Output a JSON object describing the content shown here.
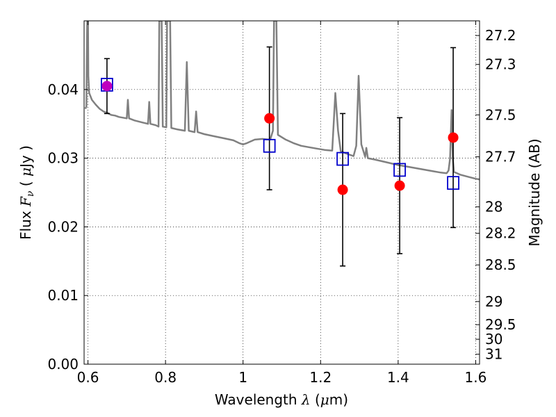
{
  "chart_data": {
    "type": "scatter",
    "xlabel": {
      "prefix": "Wavelength ",
      "symbol": "λ",
      "open": " (",
      "unit_mu": "μ",
      "unit": "m)"
    },
    "ylabel": {
      "prefix": "Flux ",
      "symbol": "F",
      "sub": "ν",
      "open": " ( ",
      "unit_mu": "μ",
      "unit": "Jy )"
    },
    "y2label": "Magnitude (AB)",
    "xlim": [
      0.59,
      1.61
    ],
    "ylim": [
      0.0,
      0.05
    ],
    "x_ticks": [
      {
        "value": 0.6,
        "label": "0.6"
      },
      {
        "value": 0.8,
        "label": "0.8"
      },
      {
        "value": 1.0,
        "label": "1"
      },
      {
        "value": 1.2,
        "label": "1.2"
      },
      {
        "value": 1.4,
        "label": "1.4"
      },
      {
        "value": 1.6,
        "label": "1.6"
      }
    ],
    "y_ticks": [
      {
        "value": 0.0,
        "label": "0.00"
      },
      {
        "value": 0.01,
        "label": "0.01"
      },
      {
        "value": 0.02,
        "label": "0.02"
      },
      {
        "value": 0.03,
        "label": "0.03"
      },
      {
        "value": 0.04,
        "label": "0.04"
      }
    ],
    "y2_ticks": [
      {
        "mag": 27.2,
        "label": "27.2"
      },
      {
        "mag": 27.3,
        "label": "27.3"
      },
      {
        "mag": 27.5,
        "label": "27.5"
      },
      {
        "mag": 27.7,
        "label": "27.7"
      },
      {
        "mag": 28.0,
        "label": "28"
      },
      {
        "mag": 28.2,
        "label": "28.2"
      },
      {
        "mag": 28.5,
        "label": "28.5"
      },
      {
        "mag": 29.0,
        "label": "29"
      },
      {
        "mag": 29.5,
        "label": "29.5"
      },
      {
        "mag": 30.0,
        "label": "30"
      },
      {
        "mag": 31.0,
        "label": "31"
      }
    ],
    "grid": true,
    "series": [
      {
        "kind": "observed",
        "marker": "circle",
        "color": "#ff0000",
        "points": [
          {
            "x": 1.068,
            "y": 0.0358,
            "err": 0.0104
          },
          {
            "x": 1.257,
            "y": 0.0254,
            "err": 0.0111
          },
          {
            "x": 1.404,
            "y": 0.026,
            "err": 0.0099
          },
          {
            "x": 1.542,
            "y": 0.033,
            "err": 0.0131
          }
        ]
      },
      {
        "kind": "observed-optical",
        "marker": "circle",
        "color": "#bf00bf",
        "points": [
          {
            "x": 0.649,
            "y": 0.0405,
            "err": 0.004
          }
        ]
      },
      {
        "kind": "model-bandpass",
        "marker": "square-open",
        "color": "#0000cc",
        "points": [
          {
            "x": 0.649,
            "y": 0.0407
          },
          {
            "x": 1.068,
            "y": 0.0318
          },
          {
            "x": 1.257,
            "y": 0.0299
          },
          {
            "x": 1.404,
            "y": 0.0283
          },
          {
            "x": 1.542,
            "y": 0.0264
          }
        ]
      },
      {
        "kind": "model-spectrum",
        "color": "#808080",
        "points": [
          [
            0.593,
            0.0372
          ],
          [
            0.596,
            0.0375
          ],
          [
            0.597,
            0.045
          ],
          [
            0.598,
            0.05
          ],
          [
            0.6,
            0.05
          ],
          [
            0.601,
            0.042
          ],
          [
            0.603,
            0.0395
          ],
          [
            0.61,
            0.0385
          ],
          [
            0.62,
            0.0378
          ],
          [
            0.63,
            0.0372
          ],
          [
            0.64,
            0.0368
          ],
          [
            0.65,
            0.0366
          ],
          [
            0.66,
            0.0363
          ],
          [
            0.67,
            0.0362
          ],
          [
            0.68,
            0.036
          ],
          [
            0.69,
            0.0359
          ],
          [
            0.7,
            0.0358
          ],
          [
            0.703,
            0.0385
          ],
          [
            0.706,
            0.0358
          ],
          [
            0.72,
            0.0355
          ],
          [
            0.74,
            0.0352
          ],
          [
            0.755,
            0.035
          ],
          [
            0.758,
            0.0382
          ],
          [
            0.761,
            0.035
          ],
          [
            0.775,
            0.0348
          ],
          [
            0.782,
            0.0346
          ],
          [
            0.784,
            0.05
          ],
          [
            0.79,
            0.05
          ],
          [
            0.793,
            0.0346
          ],
          [
            0.802,
            0.0345
          ],
          [
            0.804,
            0.05
          ],
          [
            0.812,
            0.05
          ],
          [
            0.815,
            0.0344
          ],
          [
            0.83,
            0.0342
          ],
          [
            0.85,
            0.034
          ],
          [
            0.855,
            0.044
          ],
          [
            0.86,
            0.034
          ],
          [
            0.875,
            0.0338
          ],
          [
            0.879,
            0.0368
          ],
          [
            0.883,
            0.0338
          ],
          [
            0.9,
            0.0335
          ],
          [
            0.925,
            0.0332
          ],
          [
            0.95,
            0.0329
          ],
          [
            0.975,
            0.0326
          ],
          [
            0.99,
            0.0322
          ],
          [
            1.0,
            0.032
          ],
          [
            1.01,
            0.0322
          ],
          [
            1.03,
            0.0327
          ],
          [
            1.05,
            0.0328
          ],
          [
            1.07,
            0.0327
          ],
          [
            1.077,
            0.034
          ],
          [
            1.08,
            0.05
          ],
          [
            1.086,
            0.05
          ],
          [
            1.09,
            0.0334
          ],
          [
            1.11,
            0.0327
          ],
          [
            1.13,
            0.0322
          ],
          [
            1.15,
            0.0318
          ],
          [
            1.17,
            0.0316
          ],
          [
            1.19,
            0.0314
          ],
          [
            1.21,
            0.0312
          ],
          [
            1.23,
            0.0311
          ],
          [
            1.238,
            0.0395
          ],
          [
            1.245,
            0.034
          ],
          [
            1.252,
            0.031
          ],
          [
            1.27,
            0.0306
          ],
          [
            1.285,
            0.0303
          ],
          [
            1.292,
            0.0318
          ],
          [
            1.298,
            0.042
          ],
          [
            1.305,
            0.032
          ],
          [
            1.315,
            0.0302
          ],
          [
            1.318,
            0.0315
          ],
          [
            1.322,
            0.03
          ],
          [
            1.34,
            0.0298
          ],
          [
            1.37,
            0.0294
          ],
          [
            1.4,
            0.029
          ],
          [
            1.43,
            0.0287
          ],
          [
            1.46,
            0.0284
          ],
          [
            1.49,
            0.0281
          ],
          [
            1.51,
            0.0279
          ],
          [
            1.525,
            0.0278
          ],
          [
            1.53,
            0.0282
          ],
          [
            1.534,
            0.03
          ],
          [
            1.538,
            0.037
          ],
          [
            1.541,
            0.03
          ],
          [
            1.544,
            0.028
          ],
          [
            1.56,
            0.0276
          ],
          [
            1.58,
            0.0273
          ],
          [
            1.6,
            0.027
          ],
          [
            1.61,
            0.0269
          ]
        ]
      }
    ]
  }
}
